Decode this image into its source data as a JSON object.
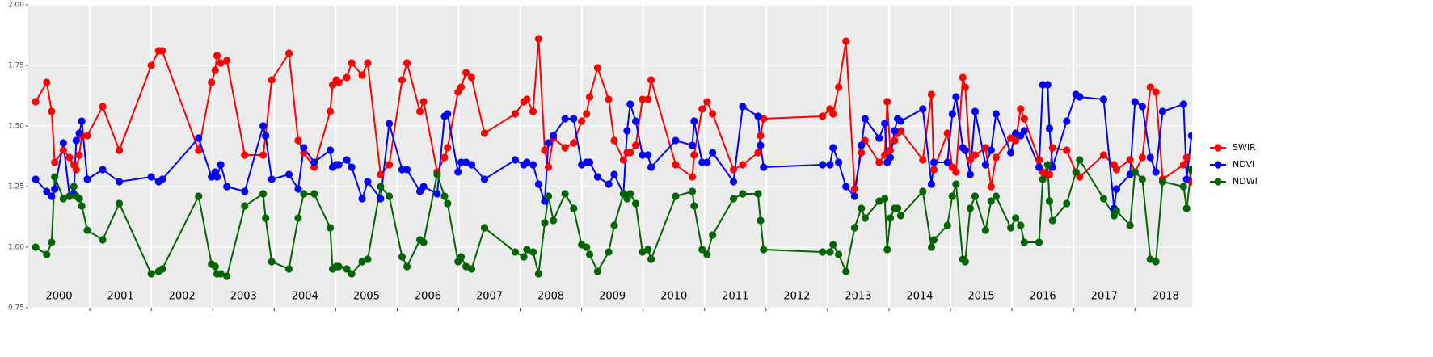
{
  "chart_data": {
    "type": "line",
    "x": [
      2000.12,
      2000.3,
      2000.38,
      2000.43,
      2000.57,
      2000.67,
      2000.74,
      2000.78,
      2000.83,
      2000.87,
      2000.96,
      2001.21,
      2001.48,
      2002.0,
      2002.12,
      2002.18,
      2002.77,
      2002.98,
      2003.04,
      2003.07,
      2003.13,
      2003.23,
      2003.52,
      2003.82,
      2003.86,
      2003.96,
      2004.24,
      2004.39,
      2004.48,
      2004.65,
      2004.91,
      2004.95,
      2005.01,
      2005.05,
      2005.18,
      2005.26,
      2005.43,
      2005.52,
      2005.73,
      2005.87,
      2006.08,
      2006.16,
      2006.37,
      2006.43,
      2006.65,
      2006.77,
      2006.82,
      2006.99,
      2007.04,
      2007.12,
      2007.21,
      2007.42,
      2007.92,
      2008.06,
      2008.11,
      2008.21,
      2008.3,
      2008.4,
      2008.46,
      2008.54,
      2008.73,
      2008.87,
      2009.0,
      2009.08,
      2009.13,
      2009.26,
      2009.44,
      2009.53,
      2009.68,
      2009.74,
      2009.79,
      2009.88,
      2009.99,
      2010.08,
      2010.13,
      2010.53,
      2010.8,
      2010.83,
      2010.96,
      2011.04,
      2011.13,
      2011.47,
      2011.62,
      2011.87,
      2011.91,
      2011.96,
      2012.92,
      2013.04,
      2013.09,
      2013.18,
      2013.3,
      2013.44,
      2013.55,
      2013.61,
      2013.84,
      2013.93,
      2013.97,
      2014.02,
      2014.09,
      2014.14,
      2014.19,
      2014.55,
      2014.69,
      2014.73,
      2014.95,
      2015.03,
      2015.09,
      2015.2,
      2015.24,
      2015.32,
      2015.4,
      2015.57,
      2015.66,
      2015.74,
      2015.98,
      2016.06,
      2016.14,
      2016.2,
      2016.44,
      2016.5,
      2016.58,
      2016.61,
      2016.66,
      2016.89,
      2017.04,
      2017.1,
      2017.49,
      2017.66,
      2017.7,
      2017.92,
      2018.0,
      2018.12,
      2018.25,
      2018.34,
      2018.45,
      2018.79,
      2018.84,
      2018.92
    ],
    "series": [
      {
        "name": "SWIR",
        "color": "#ff0000",
        "values": [
          1.6,
          1.68,
          1.56,
          1.35,
          1.4,
          1.37,
          1.34,
          1.32,
          1.38,
          1.46,
          1.46,
          1.58,
          1.4,
          1.75,
          1.81,
          1.81,
          1.4,
          1.68,
          1.73,
          1.79,
          1.76,
          1.77,
          1.38,
          1.38,
          1.46,
          1.69,
          1.8,
          1.44,
          1.39,
          1.33,
          1.56,
          1.67,
          1.69,
          1.68,
          1.7,
          1.76,
          1.71,
          1.76,
          1.3,
          1.34,
          1.69,
          1.76,
          1.56,
          1.6,
          1.31,
          1.37,
          1.41,
          1.64,
          1.66,
          1.72,
          1.7,
          1.47,
          1.55,
          1.6,
          1.61,
          1.56,
          1.86,
          1.4,
          1.33,
          1.45,
          1.41,
          1.43,
          1.52,
          1.55,
          1.62,
          1.74,
          1.61,
          1.44,
          1.36,
          1.39,
          1.39,
          1.42,
          1.61,
          1.61,
          1.69,
          1.34,
          1.29,
          1.38,
          1.57,
          1.6,
          1.55,
          1.32,
          1.34,
          1.39,
          1.46,
          1.53,
          1.54,
          1.57,
          1.55,
          1.66,
          1.85,
          1.24,
          1.39,
          1.44,
          1.35,
          1.38,
          1.6,
          1.4,
          1.44,
          1.47,
          1.48,
          1.36,
          1.63,
          1.32,
          1.47,
          1.33,
          1.31,
          1.7,
          1.66,
          1.36,
          1.38,
          1.41,
          1.25,
          1.37,
          1.45,
          1.44,
          1.57,
          1.53,
          1.36,
          1.31,
          1.3,
          1.3,
          1.41,
          1.4,
          1.31,
          1.29,
          1.38,
          1.34,
          1.32,
          1.36,
          1.31,
          1.37,
          1.66,
          1.64,
          1.28,
          1.34,
          1.37,
          1.27
        ]
      },
      {
        "name": "NDVI",
        "color": "#0000ff",
        "values": [
          1.28,
          1.23,
          1.21,
          1.24,
          1.43,
          1.21,
          1.22,
          1.44,
          1.47,
          1.52,
          1.28,
          1.32,
          1.27,
          1.29,
          1.27,
          1.28,
          1.45,
          1.29,
          1.31,
          1.29,
          1.34,
          1.25,
          1.23,
          1.5,
          1.46,
          1.28,
          1.3,
          1.24,
          1.41,
          1.35,
          1.4,
          1.33,
          1.34,
          1.34,
          1.36,
          1.33,
          1.2,
          1.27,
          1.2,
          1.51,
          1.32,
          1.32,
          1.23,
          1.25,
          1.22,
          1.54,
          1.55,
          1.31,
          1.35,
          1.35,
          1.34,
          1.28,
          1.36,
          1.34,
          1.35,
          1.34,
          1.26,
          1.19,
          1.43,
          1.46,
          1.53,
          1.53,
          1.34,
          1.35,
          1.35,
          1.29,
          1.26,
          1.3,
          1.22,
          1.48,
          1.59,
          1.52,
          1.38,
          1.38,
          1.33,
          1.44,
          1.42,
          1.52,
          1.35,
          1.35,
          1.39,
          1.27,
          1.58,
          1.54,
          1.42,
          1.33,
          1.34,
          1.34,
          1.41,
          1.35,
          1.25,
          1.21,
          1.42,
          1.53,
          1.45,
          1.51,
          1.35,
          1.37,
          1.48,
          1.53,
          1.52,
          1.57,
          1.26,
          1.35,
          1.35,
          1.55,
          1.62,
          1.41,
          1.4,
          1.3,
          1.56,
          1.34,
          1.4,
          1.55,
          1.39,
          1.47,
          1.46,
          1.48,
          1.33,
          1.67,
          1.67,
          1.49,
          1.33,
          1.52,
          1.63,
          1.62,
          1.61,
          1.16,
          1.24,
          1.3,
          1.6,
          1.58,
          1.37,
          1.31,
          1.56,
          1.59,
          1.28,
          1.46
        ]
      },
      {
        "name": "NDWI",
        "color": "#006400",
        "values": [
          1.0,
          0.97,
          1.02,
          1.29,
          1.2,
          1.21,
          1.25,
          1.21,
          1.2,
          1.17,
          1.07,
          1.03,
          1.18,
          0.89,
          0.9,
          0.91,
          1.21,
          0.93,
          0.92,
          0.89,
          0.89,
          0.88,
          1.17,
          1.22,
          1.12,
          0.94,
          0.91,
          1.12,
          1.22,
          1.22,
          1.08,
          0.91,
          0.92,
          0.92,
          0.91,
          0.89,
          0.94,
          0.95,
          1.25,
          1.21,
          0.96,
          0.92,
          1.03,
          1.02,
          1.3,
          1.21,
          1.18,
          0.94,
          0.96,
          0.92,
          0.91,
          1.08,
          0.98,
          0.96,
          0.99,
          0.98,
          0.89,
          1.1,
          1.21,
          1.11,
          1.22,
          1.16,
          1.01,
          1.0,
          0.97,
          0.9,
          0.98,
          1.09,
          1.22,
          1.2,
          1.22,
          1.18,
          0.98,
          0.99,
          0.95,
          1.21,
          1.23,
          1.17,
          0.99,
          0.97,
          1.05,
          1.2,
          1.22,
          1.22,
          1.11,
          0.99,
          0.98,
          0.98,
          1.01,
          0.97,
          0.9,
          1.08,
          1.16,
          1.12,
          1.19,
          1.2,
          0.99,
          1.12,
          1.16,
          1.16,
          1.13,
          1.23,
          1.0,
          1.03,
          1.09,
          1.21,
          1.26,
          0.95,
          0.94,
          1.16,
          1.21,
          1.07,
          1.19,
          1.21,
          1.08,
          1.12,
          1.09,
          1.02,
          1.02,
          1.28,
          1.34,
          1.19,
          1.11,
          1.18,
          1.31,
          1.36,
          1.2,
          1.13,
          1.15,
          1.09,
          1.31,
          1.28,
          0.95,
          0.94,
          1.27,
          1.25,
          1.16,
          1.32
        ]
      }
    ],
    "xlim": [
      2000,
      2018.93
    ],
    "xticks": [
      2001,
      2002,
      2003,
      2004,
      2005,
      2006,
      2007,
      2008,
      2009,
      2010,
      2011,
      2012,
      2013,
      2014,
      2015,
      2016,
      2017,
      2018
    ],
    "year_labels": [
      {
        "value": 2000.5,
        "label": "2000"
      },
      {
        "value": 2001.5,
        "label": "2001"
      },
      {
        "value": 2002.5,
        "label": "2002"
      },
      {
        "value": 2003.5,
        "label": "2003"
      },
      {
        "value": 2004.5,
        "label": "2004"
      },
      {
        "value": 2005.5,
        "label": "2005"
      },
      {
        "value": 2006.5,
        "label": "2006"
      },
      {
        "value": 2007.5,
        "label": "2007"
      },
      {
        "value": 2008.5,
        "label": "2008"
      },
      {
        "value": 2009.5,
        "label": "2009"
      },
      {
        "value": 2010.5,
        "label": "2010"
      },
      {
        "value": 2011.5,
        "label": "2011"
      },
      {
        "value": 2012.5,
        "label": "2012"
      },
      {
        "value": 2013.5,
        "label": "2013"
      },
      {
        "value": 2014.5,
        "label": "2014"
      },
      {
        "value": 2015.5,
        "label": "2015"
      },
      {
        "value": 2016.5,
        "label": "2016"
      },
      {
        "value": 2017.5,
        "label": "2017"
      },
      {
        "value": 2018.5,
        "label": "2018"
      }
    ],
    "ylim": [
      0.75,
      2.0
    ],
    "yticks": [
      0.75,
      {
        "value": 1.0,
        "label": "1.00"
      },
      1.25,
      {
        "value": 1.5,
        "label": "1.50"
      },
      1.75,
      {
        "value": 2.0,
        "label": "2.00"
      }
    ],
    "grid": true,
    "legend": "right"
  }
}
